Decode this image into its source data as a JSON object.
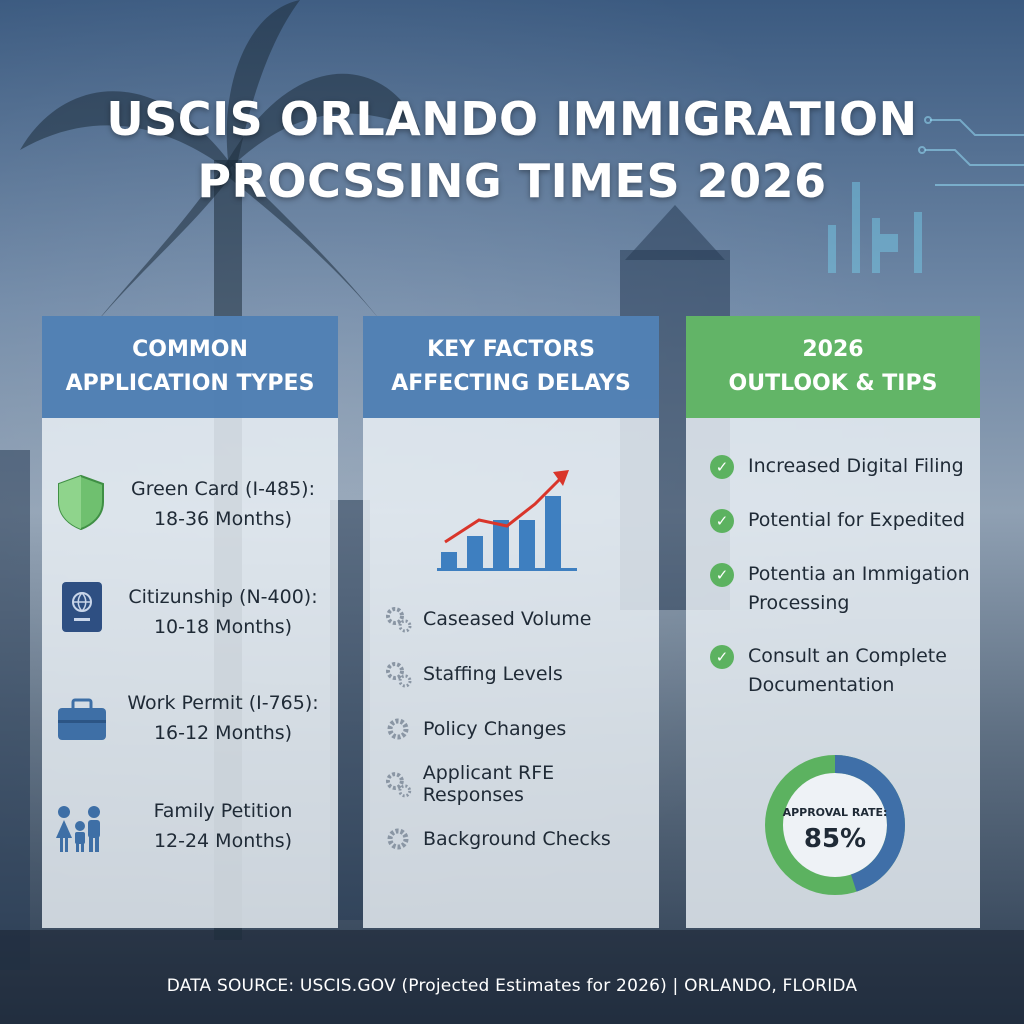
{
  "title": {
    "line1": "USCIS ORLANDO IMMIGRATION",
    "line2": "PROCSSING TIMES 2026"
  },
  "panels": [
    {
      "heading_line1": "COMMON",
      "heading_line2": "APPLICATION TYPES",
      "items": [
        {
          "icon": "shield-icon",
          "line1": "Green Card (I-485):",
          "line2": "18-36 Months)"
        },
        {
          "icon": "passport-icon",
          "line1": "Citizunship (N-400):",
          "line2": "10-18 Months)"
        },
        {
          "icon": "briefcase-icon",
          "line1": "Work Permit (I-765):",
          "line2": "16-12 Months)"
        },
        {
          "icon": "family-icon",
          "line1": "Family Petition",
          "line2": "12-24 Months)"
        }
      ]
    },
    {
      "heading_line1": "KEY FACTORS",
      "heading_line2": "AFFECTING DELAYS",
      "chart_icon": "bar-chart-trend-icon",
      "factors": [
        "Caseased Volume",
        "Staffing Levels",
        "Policy Changes",
        "Applicant RFE Responses",
        "Background Checks"
      ]
    },
    {
      "heading_line1": "2026",
      "heading_line2": "OUTLOOK & TIPS",
      "tips": [
        {
          "line1": "Increased Digital Filing",
          "line2": ""
        },
        {
          "line1": "Potential for Expedited",
          "line2": ""
        },
        {
          "line1": "Potentia an Immigation",
          "line2": "Processing"
        },
        {
          "line1": "Consult an Complete",
          "line2": "Documentation"
        }
      ],
      "approval": {
        "label": "APPROVAL RATE:",
        "value": "85%",
        "fraction": 0.85
      }
    }
  ],
  "footer": "DATA SOURCE: USCIS.GOV (Projected Estimates for 2026) | ORLANDO, FLORIDA",
  "colors": {
    "blue_header": "#4678af",
    "green_header": "#5cb260",
    "donut_blue": "#3f6fa8",
    "donut_green": "#5cb260",
    "chart_red": "#d9352a"
  }
}
